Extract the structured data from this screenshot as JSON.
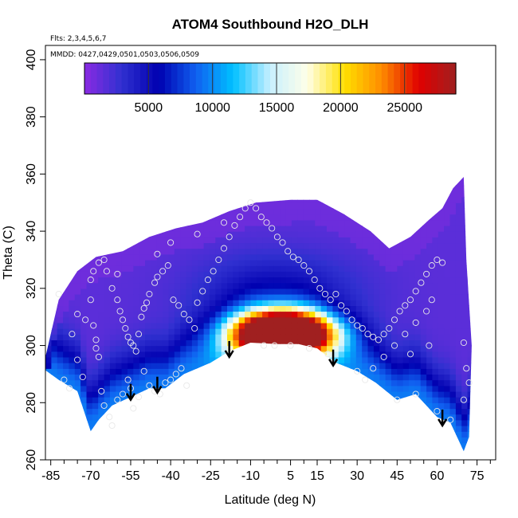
{
  "chart_data": {
    "type": "heatmap",
    "title": "ATOM4 Southbound H2O_DLH",
    "subtitle_flights": "Flts: 2,3,4,5,6,7",
    "subtitle_dates": "MMDD: 0427,0429,0501,0503,0506,0509",
    "xlabel": "Latitude (deg N)",
    "ylabel": "Theta (C)",
    "xlim": [
      -87,
      82
    ],
    "ylim": [
      260,
      405
    ],
    "x_ticks": [
      -85,
      -70,
      -55,
      -40,
      -25,
      -10,
      5,
      15,
      30,
      45,
      60,
      75
    ],
    "x_tick_labels": [
      "-85",
      "-70",
      "-55",
      "-40",
      "-25",
      "-10",
      "5",
      "15",
      "30",
      "45",
      "60",
      "75"
    ],
    "x_minor_step": 5,
    "y_ticks": [
      260,
      280,
      300,
      320,
      340,
      360,
      380,
      400
    ],
    "y_tick_labels": [
      "260",
      "280",
      "300",
      "320",
      "340",
      "360",
      "380",
      "400"
    ],
    "colorbar": {
      "min": 0,
      "max": 29000,
      "ticks": [
        5000,
        10000,
        15000,
        20000,
        25000
      ],
      "tick_labels": [
        "5000",
        "10000",
        "15000",
        "20000",
        "25000"
      ],
      "colors": [
        "#8a2be2",
        "#3030d0",
        "#0000b0",
        "#1060f0",
        "#00c0ff",
        "#c8f0ff",
        "#ffffe8",
        "#ffe000",
        "#ff8c00",
        "#e00000",
        "#a02020"
      ]
    },
    "field": {
      "lower_boundary": [
        [
          -88,
          292
        ],
        [
          -82,
          288
        ],
        [
          -75,
          284
        ],
        [
          -70,
          270
        ],
        [
          -67,
          274
        ],
        [
          -62,
          279
        ],
        [
          -55,
          282
        ],
        [
          -48,
          285
        ],
        [
          -42,
          285
        ],
        [
          -35,
          290
        ],
        [
          -25,
          294
        ],
        [
          -18,
          298
        ],
        [
          -10,
          301
        ],
        [
          0,
          300.5
        ],
        [
          8,
          300.5
        ],
        [
          15,
          299
        ],
        [
          22,
          294
        ],
        [
          30,
          291
        ],
        [
          37,
          287
        ],
        [
          45,
          281
        ],
        [
          52,
          283
        ],
        [
          60,
          275
        ],
        [
          65,
          273
        ],
        [
          70,
          263
        ],
        [
          72,
          268
        ]
      ],
      "upper_boundary": [
        [
          -88,
          292
        ],
        [
          -82,
          316
        ],
        [
          -75,
          326
        ],
        [
          -68,
          331
        ],
        [
          -58,
          333
        ],
        [
          -48,
          338
        ],
        [
          -38,
          341
        ],
        [
          -28,
          343
        ],
        [
          -18,
          347
        ],
        [
          -8,
          350
        ],
        [
          5,
          351
        ],
        [
          15,
          351
        ],
        [
          25,
          346
        ],
        [
          35,
          340
        ],
        [
          42,
          334
        ],
        [
          50,
          338
        ],
        [
          57,
          344
        ],
        [
          62,
          348
        ],
        [
          66,
          355
        ],
        [
          70,
          359
        ],
        [
          71,
          330
        ],
        [
          73,
          300
        ],
        [
          72,
          268
        ]
      ],
      "cores": [
        {
          "lat": 2,
          "theta": 306,
          "value": 26500
        },
        {
          "lat": -6,
          "theta": 304,
          "value": 22000
        },
        {
          "lat": 12,
          "theta": 304,
          "value": 22000
        },
        {
          "lat": 0,
          "theta": 296,
          "value": 18000
        }
      ],
      "background_value": 1500,
      "moist_band_value": 8000
    },
    "obs_points": [
      [
        -82,
        318
      ],
      [
        -80,
        288
      ],
      [
        -78,
        285
      ],
      [
        -75,
        295
      ],
      [
        -73,
        289
      ],
      [
        -70,
        323
      ],
      [
        -70,
        316
      ],
      [
        -69,
        307
      ],
      [
        -68,
        302
      ],
      [
        -68,
        299
      ],
      [
        -67,
        296
      ],
      [
        -66,
        284
      ],
      [
        -65,
        279
      ],
      [
        -63,
        275
      ],
      [
        -62,
        272
      ],
      [
        -60,
        281
      ],
      [
        -58,
        283
      ],
      [
        -56,
        288
      ],
      [
        -55,
        285
      ],
      [
        -54,
        278
      ],
      [
        -52,
        282
      ],
      [
        -50,
        291
      ],
      [
        -48,
        286
      ],
      [
        -46,
        284
      ],
      [
        -44,
        283
      ],
      [
        -42,
        287
      ],
      [
        -40,
        288
      ],
      [
        -38,
        290
      ],
      [
        -36,
        292
      ],
      [
        -34,
        286
      ],
      [
        -69,
        326
      ],
      [
        -67,
        329
      ],
      [
        -65,
        330
      ],
      [
        -64,
        326
      ],
      [
        -62,
        320
      ],
      [
        -60,
        316
      ],
      [
        -59,
        312
      ],
      [
        -58,
        309
      ],
      [
        -57,
        306
      ],
      [
        -56,
        303
      ],
      [
        -55,
        301
      ],
      [
        -54,
        300
      ],
      [
        -53,
        298
      ],
      [
        -52,
        304
      ],
      [
        -51,
        310
      ],
      [
        -50,
        313
      ],
      [
        -49,
        315
      ],
      [
        -48,
        318
      ],
      [
        -46,
        322
      ],
      [
        -45,
        324
      ],
      [
        -43,
        326
      ],
      [
        -41,
        328
      ],
      [
        -39,
        316
      ],
      [
        -37,
        314
      ],
      [
        -35,
        311
      ],
      [
        -33,
        309
      ],
      [
        -31,
        306
      ],
      [
        -30,
        315
      ],
      [
        -28,
        319
      ],
      [
        -26,
        323
      ],
      [
        -24,
        326
      ],
      [
        -22,
        330
      ],
      [
        -20,
        334
      ],
      [
        -18,
        338
      ],
      [
        -16,
        342
      ],
      [
        -14,
        345
      ],
      [
        -12,
        348
      ],
      [
        -10,
        350
      ],
      [
        -8,
        348
      ],
      [
        -6,
        345
      ],
      [
        -4,
        343
      ],
      [
        -2,
        341
      ],
      [
        0,
        338
      ],
      [
        2,
        336
      ],
      [
        4,
        333
      ],
      [
        6,
        331
      ],
      [
        8,
        330
      ],
      [
        10,
        328
      ],
      [
        12,
        326
      ],
      [
        14,
        323
      ],
      [
        16,
        320
      ],
      [
        18,
        318
      ],
      [
        20,
        316
      ],
      [
        22,
        318
      ],
      [
        24,
        314
      ],
      [
        26,
        312
      ],
      [
        28,
        309
      ],
      [
        30,
        307
      ],
      [
        32,
        306
      ],
      [
        34,
        304
      ],
      [
        36,
        303
      ],
      [
        38,
        302
      ],
      [
        40,
        304
      ],
      [
        42,
        306
      ],
      [
        44,
        309
      ],
      [
        46,
        312
      ],
      [
        48,
        314
      ],
      [
        50,
        316
      ],
      [
        52,
        319
      ],
      [
        54,
        322
      ],
      [
        56,
        325
      ],
      [
        58,
        328
      ],
      [
        60,
        330
      ],
      [
        62,
        329
      ],
      [
        58,
        316
      ],
      [
        56,
        312
      ],
      [
        52,
        308
      ],
      [
        48,
        304
      ],
      [
        44,
        300
      ],
      [
        40,
        296
      ],
      [
        36,
        292
      ],
      [
        33,
        288
      ],
      [
        30,
        291
      ],
      [
        45,
        281
      ],
      [
        52,
        283
      ],
      [
        60,
        277
      ],
      [
        65,
        274
      ],
      [
        70,
        281
      ],
      [
        72,
        287
      ],
      [
        71,
        292
      ],
      [
        70,
        301
      ],
      [
        57,
        300
      ],
      [
        50,
        297
      ],
      [
        -75,
        311
      ],
      [
        -72,
        309
      ],
      [
        -77,
        304
      ],
      [
        -60,
        325
      ],
      [
        -45,
        332
      ],
      [
        -40,
        336
      ],
      [
        -30,
        339
      ],
      [
        -20,
        343
      ],
      [
        -5,
        300
      ],
      [
        5,
        300
      ],
      [
        12,
        299
      ],
      [
        19,
        297
      ],
      [
        -1,
        300
      ]
    ],
    "arrows": [
      {
        "lat": -55,
        "theta": 281
      },
      {
        "lat": -45,
        "theta": 283.5
      },
      {
        "lat": -18,
        "theta": 296
      },
      {
        "lat": 21,
        "theta": 293
      },
      {
        "lat": 62,
        "theta": 272
      }
    ]
  }
}
